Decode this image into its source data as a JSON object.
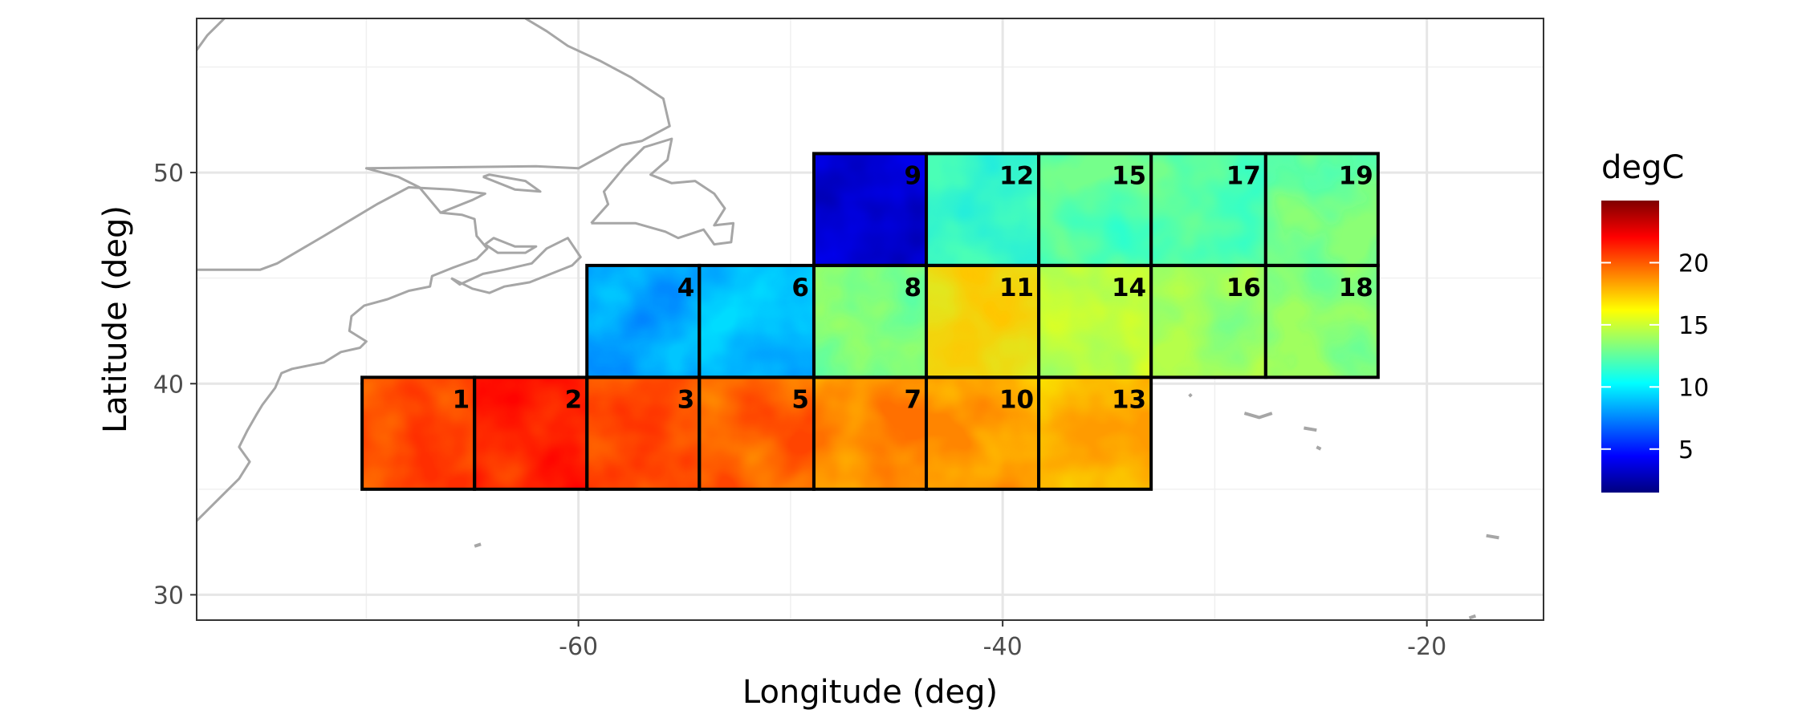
{
  "chart_data": {
    "type": "heatmap",
    "title": "",
    "xlabel": "Longitude (deg)",
    "ylabel": "Latitude (deg)",
    "xlim": [
      -78,
      -14.5
    ],
    "ylim": [
      28.8,
      57.3
    ],
    "x_ticks": [
      -60,
      -40,
      -20
    ],
    "y_ticks": [
      30,
      40,
      50
    ],
    "grid": true,
    "legend": {
      "title": "degC",
      "position": "right",
      "ticks": [
        5,
        10,
        15,
        20
      ],
      "range": [
        1.5,
        25
      ],
      "colormap": [
        "#00007f",
        "#0000ff",
        "#0080ff",
        "#00ffff",
        "#80ff80",
        "#ffff00",
        "#ff8000",
        "#ff0000",
        "#7f0000"
      ]
    },
    "coastline_color": "#a6a6a6",
    "tiles": [
      {
        "id": "1",
        "lon": [
          -70.2,
          -64.9
        ],
        "lat": [
          35.0,
          40.3
        ],
        "mean_degC": 21
      },
      {
        "id": "2",
        "lon": [
          -64.9,
          -59.6
        ],
        "lat": [
          35.0,
          40.3
        ],
        "mean_degC": 22
      },
      {
        "id": "3",
        "lon": [
          -59.6,
          -54.3
        ],
        "lat": [
          35.0,
          40.3
        ],
        "mean_degC": 21
      },
      {
        "id": "5",
        "lon": [
          -54.3,
          -48.9
        ],
        "lat": [
          35.0,
          40.3
        ],
        "mean_degC": 20.5
      },
      {
        "id": "7",
        "lon": [
          -48.9,
          -43.6
        ],
        "lat": [
          35.0,
          40.3
        ],
        "mean_degC": 19.5
      },
      {
        "id": "10",
        "lon": [
          -43.6,
          -38.3
        ],
        "lat": [
          35.0,
          40.3
        ],
        "mean_degC": 19
      },
      {
        "id": "13",
        "lon": [
          -38.3,
          -33.0
        ],
        "lat": [
          35.0,
          40.3
        ],
        "mean_degC": 18.5
      },
      {
        "id": "4",
        "lon": [
          -59.6,
          -54.3
        ],
        "lat": [
          40.3,
          45.6
        ],
        "mean_degC": 9
      },
      {
        "id": "6",
        "lon": [
          -54.3,
          -48.9
        ],
        "lat": [
          40.3,
          45.6
        ],
        "mean_degC": 9.5
      },
      {
        "id": "8",
        "lon": [
          -48.9,
          -43.6
        ],
        "lat": [
          40.3,
          45.6
        ],
        "mean_degC": 14
      },
      {
        "id": "11",
        "lon": [
          -43.6,
          -38.3
        ],
        "lat": [
          40.3,
          45.6
        ],
        "mean_degC": 17.5
      },
      {
        "id": "14",
        "lon": [
          -38.3,
          -33.0
        ],
        "lat": [
          40.3,
          45.6
        ],
        "mean_degC": 15.5
      },
      {
        "id": "16",
        "lon": [
          -33.0,
          -27.6
        ],
        "lat": [
          40.3,
          45.6
        ],
        "mean_degC": 14.5
      },
      {
        "id": "18",
        "lon": [
          -27.6,
          -22.3
        ],
        "lat": [
          40.3,
          45.6
        ],
        "mean_degC": 14
      },
      {
        "id": "9",
        "lon": [
          -48.9,
          -43.6
        ],
        "lat": [
          45.6,
          50.9
        ],
        "mean_degC": 4
      },
      {
        "id": "12",
        "lon": [
          -43.6,
          -38.3
        ],
        "lat": [
          45.6,
          50.9
        ],
        "mean_degC": 12
      },
      {
        "id": "15",
        "lon": [
          -38.3,
          -33.0
        ],
        "lat": [
          45.6,
          50.9
        ],
        "mean_degC": 13
      },
      {
        "id": "17",
        "lon": [
          -33.0,
          -27.6
        ],
        "lat": [
          45.6,
          50.9
        ],
        "mean_degC": 13
      },
      {
        "id": "19",
        "lon": [
          -27.6,
          -22.3
        ],
        "lat": [
          45.6,
          50.9
        ],
        "mean_degC": 13.5
      }
    ]
  }
}
